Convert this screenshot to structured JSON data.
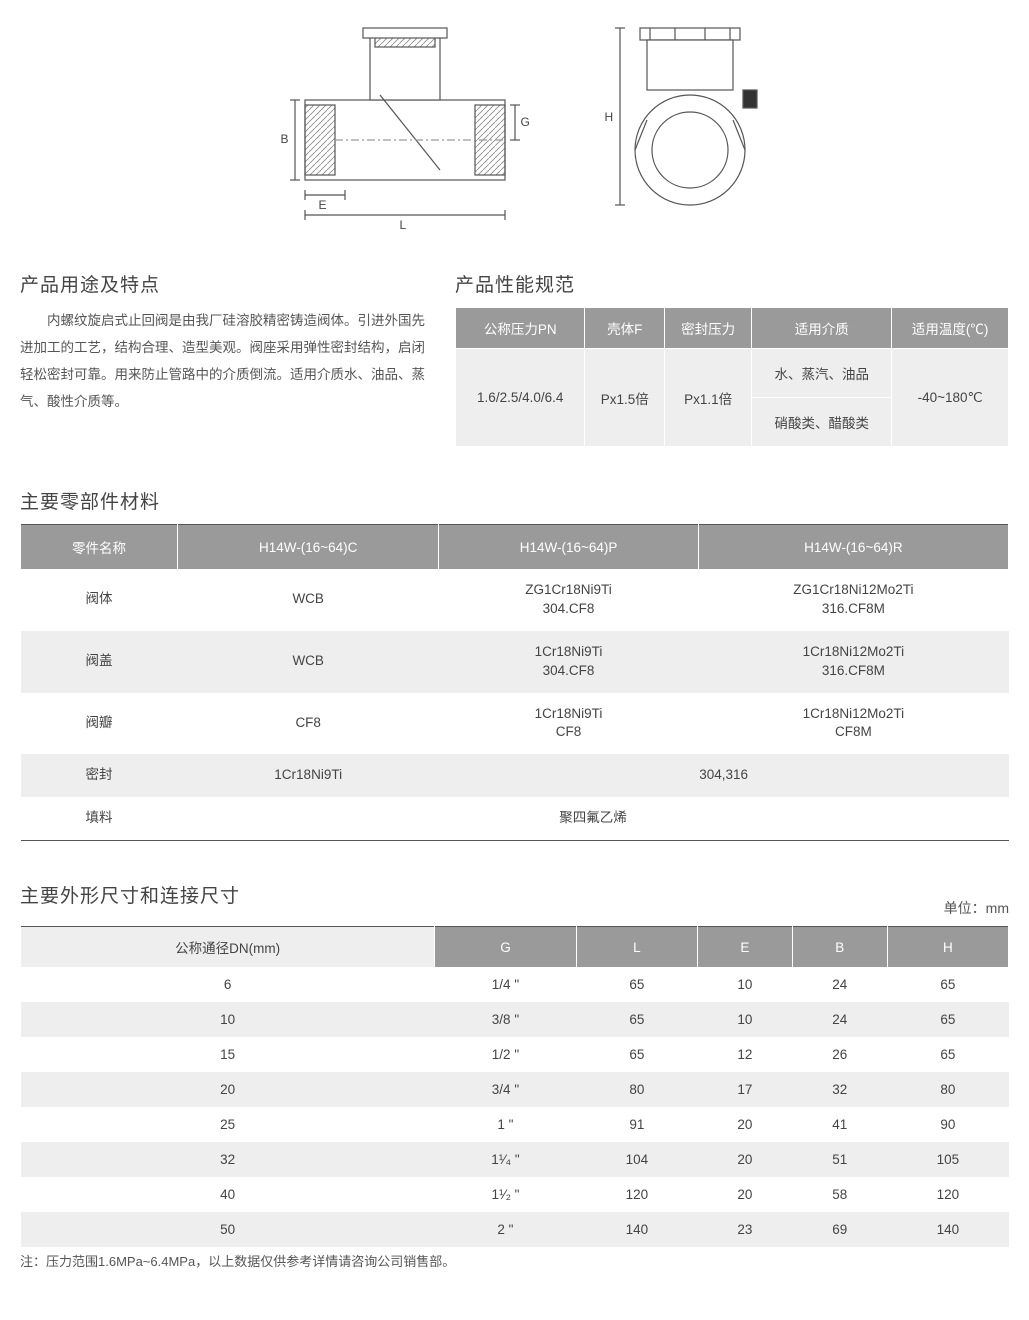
{
  "diagram": {
    "labels": {
      "B": "B",
      "E": "E",
      "L": "L",
      "G": "G",
      "H": "H"
    }
  },
  "usage": {
    "title": "产品用途及特点",
    "text": "内螺纹旋启式止回阀是由我厂硅溶胶精密铸造阀体。引进外国先进加工的工艺，结构合理、造型美观。阀座采用弹性密封结构，启闭轻松密封可靠。用来防止管路中的介质倒流。适用介质水、油品、蒸气、酸性介质等。"
  },
  "performance": {
    "title": "产品性能规范",
    "headers": [
      "公称压力PN",
      "壳体F",
      "密封压力",
      "适用介质",
      "适用温度(℃)"
    ],
    "pn": "1.6/2.5/4.0/6.4",
    "shell": "Px1.5倍",
    "seal": "Px1.1倍",
    "media1": "水、蒸汽、油品",
    "media2": "硝酸类、醋酸类",
    "temp": "-40~180℃"
  },
  "materials": {
    "title": "主要零部件材料",
    "headers": [
      "零件名称",
      "H14W-(16~64)C",
      "H14W-(16~64)P",
      "H14W-(16~64)R"
    ],
    "rows": [
      {
        "name": "阀体",
        "c": "WCB",
        "p": "ZG1Cr18Ni9Ti\n304.CF8",
        "r": "ZG1Cr18Ni12Mo2Ti\n316.CF8M"
      },
      {
        "name": "阀盖",
        "c": "WCB",
        "p": "1Cr18Ni9Ti\n304.CF8",
        "r": "1Cr18Ni12Mo2Ti\n316.CF8M"
      },
      {
        "name": "阀瓣",
        "c": "CF8",
        "p": "1Cr18Ni9Ti\nCF8",
        "r": "1Cr18Ni12Mo2Ti\nCF8M"
      }
    ],
    "seal_row": {
      "name": "密封",
      "c": "1Cr18Ni9Ti",
      "pr": "304,316"
    },
    "filler_row": {
      "name": "填料",
      "val": "聚四氟乙烯"
    }
  },
  "dimensions": {
    "title": "主要外形尺寸和连接尺寸",
    "unit": "单位：mm",
    "headers": [
      "公称通径DN(mm)",
      "G",
      "L",
      "E",
      "B",
      "H"
    ],
    "rows": [
      [
        "6",
        "1/4 \"",
        "65",
        "10",
        "24",
        "65"
      ],
      [
        "10",
        "3/8 \"",
        "65",
        "10",
        "24",
        "65"
      ],
      [
        "15",
        "1/2 \"",
        "65",
        "12",
        "26",
        "65"
      ],
      [
        "20",
        "3/4 \"",
        "80",
        "17",
        "32",
        "80"
      ],
      [
        "25",
        "1 \"",
        "91",
        "20",
        "41",
        "90"
      ],
      [
        "32",
        "1¹⁄₄ \"",
        "104",
        "20",
        "51",
        "105"
      ],
      [
        "40",
        "1¹⁄₂ \"",
        "120",
        "20",
        "58",
        "120"
      ],
      [
        "50",
        "2 \"",
        "140",
        "23",
        "69",
        "140"
      ]
    ],
    "note": "注：压力范围1.6MPa~6.4MPa，以上数据仅供参考详情请咨询公司销售部。"
  }
}
